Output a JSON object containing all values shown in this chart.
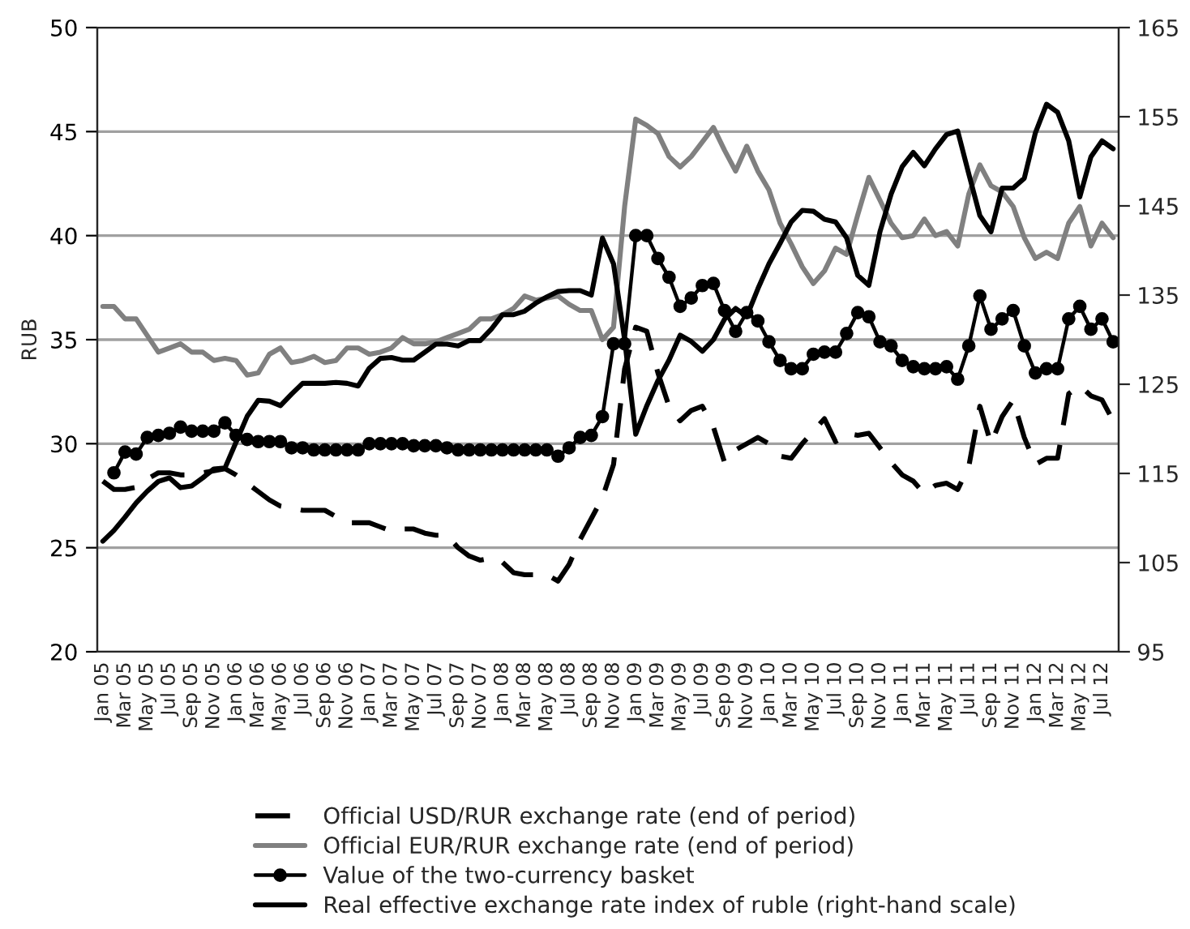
{
  "chart_data": {
    "type": "line",
    "categories": [
      "Jan 05",
      null,
      "Mar 05",
      null,
      "May 05",
      null,
      "Jul 05",
      null,
      "Sep 05",
      null,
      "Nov 05",
      null,
      "Jan 06",
      null,
      "Mar 06",
      null,
      "May 06",
      null,
      "Jul 06",
      null,
      "Sep 06",
      null,
      "Nov 06",
      null,
      "Jan 07",
      null,
      "Mar 07",
      null,
      "May 07",
      null,
      "Jul 07",
      null,
      "Sep 07",
      null,
      "Nov 07",
      null,
      "Jan 08",
      null,
      "Mar 08",
      null,
      "May 08",
      null,
      "Jul 08",
      null,
      "Sep 08",
      null,
      "Nov 08",
      null,
      "Jan 09",
      null,
      "Mar 09",
      null,
      "May 09",
      null,
      "Jul 09",
      null,
      "Sep 09",
      null,
      "Nov 09",
      null,
      "Jan 10",
      null,
      "Mar 10",
      null,
      "May 10",
      null,
      "Jul 10",
      null,
      "Sep 10",
      null,
      "Nov 10",
      null,
      "Jan 11",
      null,
      "Mar 11",
      null,
      "May 11",
      null,
      "Jul 11",
      null,
      "Sep 11",
      null,
      "Nov 11",
      null,
      "Jan 12",
      null,
      "Mar 12",
      null,
      "May 12",
      null,
      "Jul 12",
      null
    ],
    "ylabel": "RUB",
    "ylim": [
      20,
      50
    ],
    "yticks": [
      20,
      25,
      30,
      35,
      40,
      45,
      50
    ],
    "y2lim": [
      95,
      165
    ],
    "y2ticks": [
      95,
      105,
      115,
      125,
      135,
      145,
      155,
      165
    ],
    "grid": "y",
    "legend": "bottom",
    "series": [
      {
        "name": "Official USD/RUR exchange rate (end of period)",
        "color": "#000000",
        "line_style": "dashed",
        "marker": "none",
        "values": [
          28.2,
          27.8,
          27.8,
          27.9,
          28.3,
          28.6,
          28.6,
          28.5,
          28.5,
          28.6,
          28.7,
          28.8,
          28.5,
          28.1,
          27.7,
          27.3,
          27.0,
          26.9,
          26.8,
          26.8,
          26.8,
          26.5,
          26.2,
          26.2,
          26.2,
          26.0,
          25.8,
          25.9,
          25.9,
          25.7,
          25.6,
          25.6,
          25.0,
          24.6,
          24.4,
          24.5,
          24.3,
          23.8,
          23.7,
          23.7,
          23.7,
          23.4,
          24.2,
          25.4,
          26.4,
          27.4,
          29.0,
          33.6,
          35.6,
          35.4,
          33.4,
          31.8,
          31.1,
          31.6,
          31.8,
          30.8,
          29.1,
          29.7,
          30.0,
          30.3,
          30.0,
          29.4,
          29.3,
          30.0,
          30.6,
          31.2,
          30.1,
          30.5,
          30.4,
          30.5,
          29.8,
          29.1,
          28.5,
          28.2,
          27.6,
          28.0,
          28.1,
          27.8,
          28.9,
          31.8,
          30.0,
          31.3,
          32.1,
          30.3,
          29.0,
          29.3,
          29.3,
          32.4,
          32.8,
          32.3,
          32.1,
          31.1
        ]
      },
      {
        "name": "Official EUR/RUR exchange rate (end of period)",
        "color": "#808080",
        "line_style": "solid",
        "marker": "none",
        "values": [
          36.6,
          36.6,
          36.0,
          36.0,
          35.2,
          34.4,
          34.6,
          34.8,
          34.4,
          34.4,
          34.0,
          34.1,
          34.0,
          33.3,
          33.4,
          34.3,
          34.6,
          33.9,
          34.0,
          34.2,
          33.9,
          34.0,
          34.6,
          34.6,
          34.3,
          34.4,
          34.6,
          35.1,
          34.8,
          34.8,
          34.9,
          35.1,
          35.3,
          35.5,
          36.0,
          36.0,
          36.2,
          36.5,
          37.1,
          36.9,
          37.0,
          37.1,
          36.7,
          36.4,
          36.4,
          35.0,
          35.6,
          41.4,
          45.6,
          45.3,
          44.9,
          43.8,
          43.3,
          43.8,
          44.5,
          45.2,
          44.1,
          43.1,
          44.3,
          43.1,
          42.2,
          40.6,
          39.6,
          38.5,
          37.7,
          38.3,
          39.4,
          39.1,
          41.0,
          42.8,
          41.7,
          40.6,
          39.9,
          40.0,
          40.8,
          40.0,
          40.2,
          39.5,
          42.0,
          43.4,
          42.4,
          42.1,
          41.4,
          39.9,
          38.9,
          39.2,
          38.9,
          40.6,
          41.4,
          39.5,
          40.6,
          39.9
        ]
      },
      {
        "name": "Value of the two-currency basket",
        "color": "#000000",
        "line_style": "solid",
        "marker": "circle",
        "values": [
          null,
          28.6,
          29.6,
          29.5,
          30.3,
          30.4,
          30.5,
          30.8,
          30.6,
          30.6,
          30.6,
          31.0,
          30.4,
          30.2,
          30.1,
          30.1,
          30.1,
          29.8,
          29.8,
          29.7,
          29.7,
          29.7,
          29.7,
          29.7,
          30.0,
          30.0,
          30.0,
          30.0,
          29.9,
          29.9,
          29.9,
          29.8,
          29.7,
          29.7,
          29.7,
          29.7,
          29.7,
          29.7,
          29.7,
          29.7,
          29.7,
          29.4,
          29.8,
          30.3,
          30.4,
          31.3,
          34.8,
          34.8,
          40.0,
          40.0,
          38.9,
          38.0,
          36.6,
          37.0,
          37.6,
          37.7,
          36.4,
          35.4,
          36.3,
          35.9,
          34.9,
          34.0,
          33.6,
          33.6,
          34.3,
          34.4,
          34.4,
          35.3,
          36.3,
          36.1,
          34.9,
          34.7,
          34.0,
          33.7,
          33.6,
          33.6,
          33.7,
          33.1,
          34.7,
          37.1,
          35.5,
          36.0,
          36.4,
          34.7,
          33.4,
          33.6,
          33.6,
          36.0,
          36.6,
          35.5,
          36.0,
          34.9
        ]
      },
      {
        "name": "Real effective exchange rate index of ruble (right-hand scale)",
        "color": "#000000",
        "line_style": "solid",
        "marker": "none",
        "axis": "y2",
        "values": [
          107.4,
          108.6,
          110.1,
          111.7,
          113.0,
          114.1,
          114.5,
          113.4,
          113.6,
          114.5,
          115.5,
          115.6,
          118.5,
          121.4,
          123.2,
          123.1,
          122.6,
          123.9,
          125.1,
          125.1,
          125.1,
          125.2,
          125.1,
          124.8,
          126.8,
          127.9,
          128.0,
          127.7,
          127.7,
          128.6,
          129.5,
          129.5,
          129.3,
          129.9,
          129.9,
          131.2,
          132.8,
          132.8,
          133.2,
          134.1,
          134.8,
          135.4,
          135.5,
          135.5,
          135.0,
          141.4,
          138.5,
          130.0,
          119.4,
          122.6,
          125.4,
          127.7,
          130.5,
          129.8,
          128.7,
          130.0,
          132.3,
          133.5,
          132.6,
          135.7,
          138.5,
          140.8,
          143.2,
          144.5,
          144.4,
          143.5,
          143.2,
          141.4,
          137.2,
          136.1,
          142.1,
          146.3,
          149.4,
          151.0,
          149.5,
          151.4,
          153.0,
          153.4,
          148.6,
          143.9,
          142.1,
          147.0,
          147.0,
          148.1,
          153.2,
          156.4,
          155.5,
          152.3,
          146.0,
          150.5,
          152.3,
          151.4
        ]
      }
    ]
  }
}
